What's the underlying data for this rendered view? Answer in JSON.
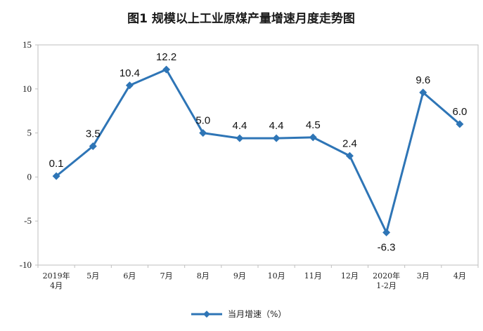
{
  "chart_data": {
    "type": "line",
    "title": "图1 规模以上工业原煤产量增速月度走势图",
    "categories": [
      [
        "2019年",
        "4月"
      ],
      [
        "5月"
      ],
      [
        "6月"
      ],
      [
        "7月"
      ],
      [
        "8月"
      ],
      [
        "9月"
      ],
      [
        "10月"
      ],
      [
        "11月"
      ],
      [
        "12月"
      ],
      [
        "2020年",
        "1-2月"
      ],
      [
        "3月"
      ],
      [
        "4月"
      ]
    ],
    "series": [
      {
        "name": "当月增速（%）",
        "values": [
          0.1,
          3.5,
          10.4,
          12.2,
          5.0,
          4.4,
          4.4,
          4.5,
          2.4,
          -6.3,
          9.6,
          6.0
        ],
        "labels": [
          "0.1",
          "3.5",
          "10.4",
          "12.2",
          "5.0",
          "4.4",
          "4.4",
          "4.5",
          "2.4",
          "-6.3",
          "9.6",
          "6.0"
        ],
        "color": "#2e75b6"
      }
    ],
    "ylim": [
      -10,
      15
    ],
    "yticks": [
      -10,
      -5,
      0,
      5,
      10,
      15
    ],
    "legend_position": "bottom"
  }
}
